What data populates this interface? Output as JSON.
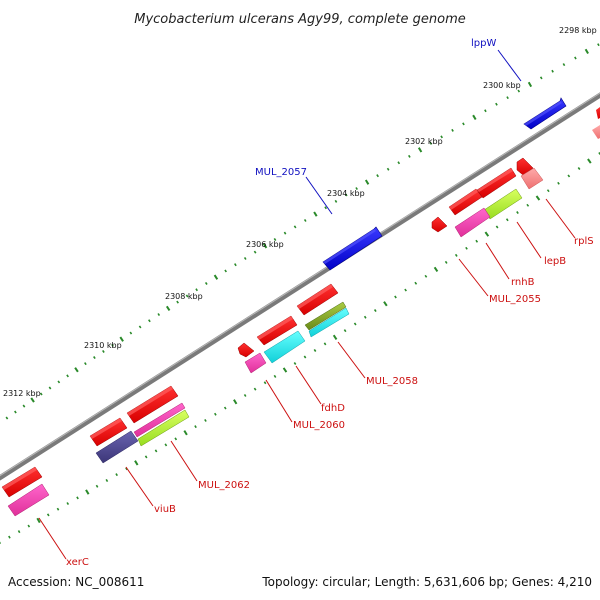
{
  "title": "Mycobacterium ulcerans Agy99, complete genome",
  "footer": {
    "accession": "Accession: NC_008611",
    "topology": "Topology: circular; Length: 5,631,606 bp; Genes: 4,210"
  },
  "colors": {
    "backbone": "#7a7a7a",
    "forward_label": "#1010c0",
    "reverse_label": "#cc1010",
    "forward_gene": "#1010d0",
    "reverse_gene": "#ee1111",
    "tick": "#2a8a2a"
  },
  "ticks": [
    {
      "label": "2298 kbp"
    },
    {
      "label": "2300 kbp"
    },
    {
      "label": "2302 kbp"
    },
    {
      "label": "2304 kbp"
    },
    {
      "label": "2306 kbp"
    },
    {
      "label": "2308 kbp"
    },
    {
      "label": "2310 kbp"
    },
    {
      "label": "2312 kbp"
    }
  ],
  "forward_genes": [
    {
      "name": "lppW"
    },
    {
      "name": "MUL_2057"
    }
  ],
  "reverse_genes": [
    {
      "name": "rplS"
    },
    {
      "name": "lepB"
    },
    {
      "name": "rnhB"
    },
    {
      "name": "MUL_2055"
    },
    {
      "name": "MUL_2058"
    },
    {
      "name": "fdhD"
    },
    {
      "name": "MUL_2060"
    },
    {
      "name": "MUL_2062"
    },
    {
      "name": "viuB"
    },
    {
      "name": "xerC"
    }
  ]
}
